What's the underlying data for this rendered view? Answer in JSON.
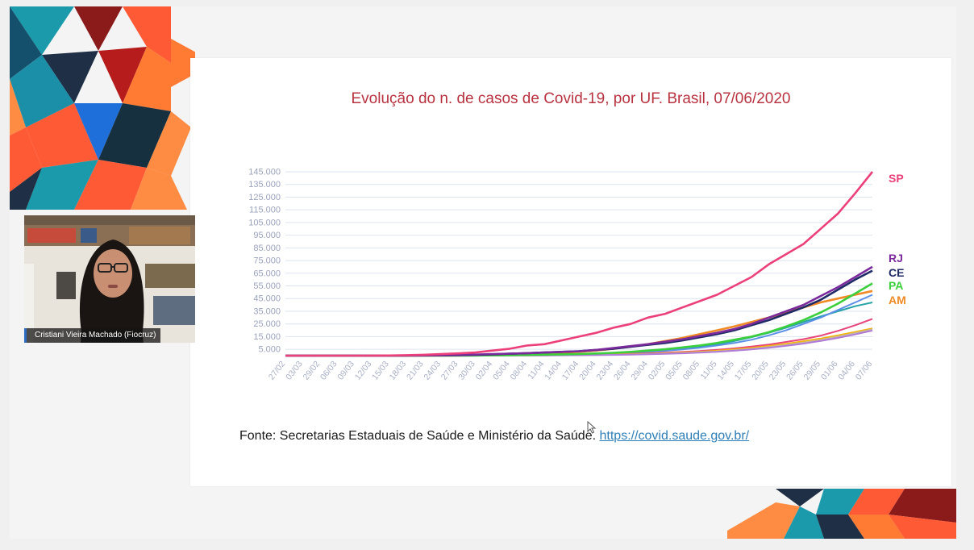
{
  "participant": {
    "name": "Cristiani Vieira Machado (Fiocruz)"
  },
  "slide": {
    "source_prefix": "Fonte: Secretarias Estaduais de Saúde e Ministério da Saúde.",
    "source_link": "https://covid.saude.gov.br/"
  },
  "chart_data": {
    "type": "line",
    "title": "Evolução do n. de casos de Covid-19, por UF. Brasil, 07/06/2020",
    "xlabel": "",
    "ylabel": "",
    "ylim": [
      0,
      145000
    ],
    "grid": true,
    "legend": "right",
    "y_ticks": [
      5000,
      15000,
      25000,
      35000,
      45000,
      55000,
      65000,
      75000,
      85000,
      95000,
      105000,
      115000,
      125000,
      135000,
      145000
    ],
    "y_tick_labels": [
      "5.000",
      "15.000",
      "25.000",
      "35.000",
      "45.000",
      "55.000",
      "65.000",
      "75.000",
      "85.000",
      "95.000",
      "105.000",
      "115.000",
      "125.000",
      "135.000",
      "145.000"
    ],
    "x_tick_labels": [
      "27/02",
      "03/03",
      "29/02",
      "06/03",
      "09/03",
      "12/03",
      "15/03",
      "18/03",
      "21/03",
      "24/03",
      "27/03",
      "30/03",
      "02/04",
      "05/04",
      "08/04",
      "11/04",
      "14/04",
      "17/04",
      "20/04",
      "23/04",
      "26/04",
      "29/04",
      "02/05",
      "05/05",
      "08/05",
      "11/05",
      "14/05",
      "17/05",
      "20/05",
      "23/05",
      "26/05",
      "29/05",
      "01/06",
      "04/06",
      "07/06"
    ],
    "series": [
      {
        "name": "SP",
        "color": "#ec407a",
        "values": [
          0,
          0,
          0,
          0,
          0,
          50,
          150,
          350,
          700,
          1200,
          1800,
          2500,
          4000,
          5500,
          8000,
          9000,
          12000,
          15000,
          18000,
          22000,
          25000,
          30000,
          33000,
          38000,
          43000,
          48000,
          55000,
          62000,
          72000,
          80000,
          88000,
          100000,
          112000,
          128000,
          145000
        ]
      },
      {
        "name": "RJ",
        "color": "#7b2a9c",
        "values": [
          0,
          0,
          0,
          0,
          0,
          20,
          50,
          100,
          200,
          300,
          500,
          800,
          1200,
          1600,
          2000,
          2500,
          3000,
          3500,
          4500,
          6000,
          7500,
          9000,
          11000,
          13000,
          15500,
          18000,
          21000,
          25000,
          30000,
          35000,
          40000,
          47000,
          54000,
          62000,
          70000
        ]
      },
      {
        "name": "CE",
        "color": "#1f2a66",
        "values": [
          0,
          0,
          0,
          0,
          0,
          10,
          30,
          60,
          150,
          250,
          400,
          600,
          1000,
          1500,
          2000,
          2500,
          3000,
          3500,
          4500,
          5500,
          7000,
          8500,
          10000,
          12000,
          14500,
          17000,
          20000,
          24000,
          28000,
          33000,
          38000,
          44000,
          52000,
          60000,
          67000
        ]
      },
      {
        "name": "PA",
        "color": "#3ccf3c",
        "values": [
          0,
          0,
          0,
          0,
          0,
          0,
          0,
          10,
          20,
          40,
          80,
          150,
          250,
          400,
          600,
          800,
          1000,
          1300,
          1700,
          2200,
          3000,
          4000,
          5000,
          6500,
          8000,
          10000,
          12500,
          15000,
          18500,
          23000,
          28000,
          34000,
          41000,
          49000,
          57000
        ]
      },
      {
        "name": "AM",
        "color": "#f08a24",
        "values": [
          0,
          0,
          0,
          0,
          0,
          0,
          0,
          10,
          30,
          80,
          150,
          300,
          500,
          800,
          1200,
          1700,
          2300,
          3000,
          4000,
          5500,
          7000,
          9000,
          11500,
          14000,
          17000,
          20000,
          23000,
          26500,
          30000,
          34000,
          38000,
          42000,
          45000,
          48000,
          51000
        ]
      }
    ],
    "other_series": [
      {
        "color": "#27a3a8",
        "values": [
          0,
          0,
          0,
          0,
          0,
          0,
          0,
          0,
          10,
          20,
          50,
          100,
          200,
          350,
          500,
          700,
          900,
          1200,
          1600,
          2100,
          2800,
          3600,
          4600,
          5800,
          7200,
          9000,
          11500,
          14500,
          18000,
          22000,
          26500,
          31000,
          35000,
          39000,
          42000
        ]
      },
      {
        "color": "#5b8fe6",
        "values": [
          0,
          0,
          0,
          0,
          0,
          0,
          0,
          0,
          10,
          20,
          40,
          80,
          150,
          250,
          400,
          550,
          750,
          1000,
          1300,
          1700,
          2200,
          2900,
          3800,
          4900,
          6300,
          8000,
          10000,
          12500,
          16000,
          20000,
          25000,
          30000,
          36000,
          42000,
          48000
        ]
      },
      {
        "color": "#e8447a",
        "values": [
          0,
          0,
          0,
          0,
          0,
          0,
          0,
          0,
          10,
          20,
          40,
          70,
          120,
          200,
          300,
          420,
          560,
          720,
          900,
          1150,
          1450,
          1850,
          2350,
          2950,
          3700,
          4600,
          5700,
          7100,
          8800,
          10800,
          13000,
          15800,
          19500,
          24000,
          29000
        ]
      },
      {
        "color": "#f4b400",
        "values": [
          0,
          0,
          0,
          0,
          0,
          0,
          0,
          0,
          0,
          10,
          20,
          40,
          70,
          120,
          180,
          260,
          360,
          480,
          640,
          840,
          1100,
          1450,
          1900,
          2450,
          3100,
          3900,
          4900,
          6100,
          7600,
          9300,
          11300,
          13500,
          16000,
          18700,
          21500
        ]
      },
      {
        "color": "#c7b8a0",
        "values": [
          0,
          0,
          0,
          0,
          0,
          0,
          0,
          0,
          0,
          10,
          20,
          30,
          60,
          100,
          150,
          220,
          300,
          400,
          530,
          700,
          920,
          1200,
          1580,
          2050,
          2650,
          3400,
          4300,
          5400,
          6800,
          8400,
          10300,
          12500,
          15000,
          17800,
          20800
        ]
      },
      {
        "color": "#b07bd8",
        "values": [
          0,
          0,
          0,
          0,
          0,
          0,
          0,
          0,
          0,
          0,
          10,
          20,
          40,
          70,
          110,
          160,
          230,
          320,
          440,
          600,
          800,
          1060,
          1400,
          1830,
          2380,
          3060,
          3900,
          4950,
          6200,
          7700,
          9500,
          11600,
          14000,
          16800,
          19800
        ]
      }
    ]
  }
}
